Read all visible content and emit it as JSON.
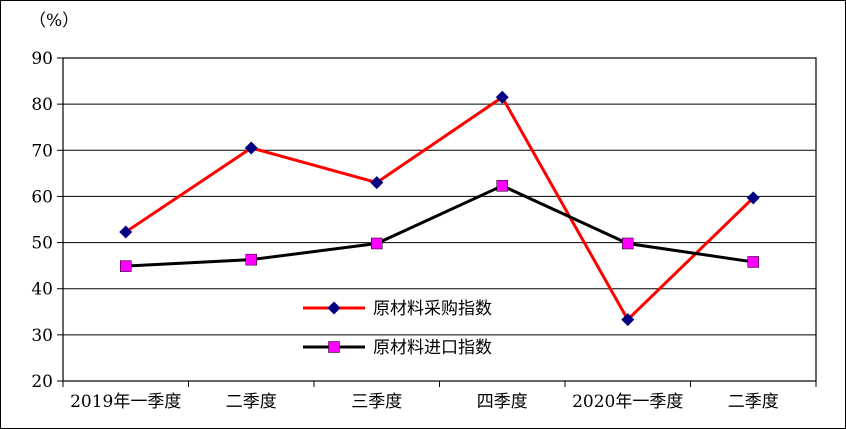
{
  "chart_data": {
    "type": "line",
    "title": "",
    "unit_label": "（%）",
    "categories": [
      "2019年一季度",
      "二季度",
      "三季度",
      "四季度",
      "2020年一季度",
      "二季度"
    ],
    "series": [
      {
        "name": "原材料采购指数",
        "values": [
          52.3,
          70.5,
          63.0,
          81.5,
          33.3,
          59.7
        ],
        "line_color": "#ff0000",
        "marker": "diamond",
        "marker_color": "#000080"
      },
      {
        "name": "原材料进口指数",
        "values": [
          44.9,
          46.3,
          49.8,
          62.3,
          49.8,
          45.8
        ],
        "line_color": "#000000",
        "marker": "square",
        "marker_color": "#ff00ff"
      }
    ],
    "ylim": [
      20,
      90
    ],
    "ytick_step": 10,
    "yticks": [
      "20",
      "30",
      "40",
      "50",
      "60",
      "70",
      "80",
      "90"
    ],
    "grid": true,
    "legend_position": "inside-bottom-center"
  }
}
